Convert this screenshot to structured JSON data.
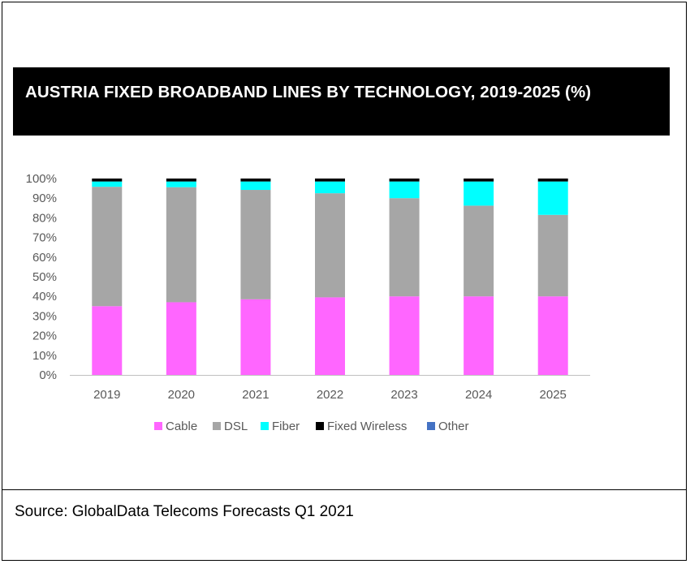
{
  "title": "AUSTRIA FIXED BROADBAND LINES BY TECHNOLOGY, 2019-2025 (%)",
  "source": "Source: GlobalData Telecoms Forecasts Q1 2021",
  "chart_data": {
    "type": "bar",
    "stacked": true,
    "categories": [
      "2019",
      "2020",
      "2021",
      "2022",
      "2023",
      "2024",
      "2025"
    ],
    "ylim": [
      0,
      100
    ],
    "yticks": [
      "0%",
      "10%",
      "20%",
      "30%",
      "40%",
      "50%",
      "60%",
      "70%",
      "80%",
      "90%",
      "100%"
    ],
    "grid": false,
    "legend_position": "bottom",
    "series": [
      {
        "name": "Cable",
        "color": "#ff66ff",
        "values": [
          35,
          37,
          38.5,
          39.5,
          40,
          40,
          40
        ]
      },
      {
        "name": "DSL",
        "color": "#a6a6a6",
        "values": [
          60.8,
          58.6,
          55.7,
          53,
          50,
          46.2,
          41.5
        ]
      },
      {
        "name": "Fiber",
        "color": "#00ffff",
        "values": [
          2.7,
          2.9,
          4.3,
          6,
          8.5,
          12.3,
          17
        ]
      },
      {
        "name": "Fixed Wireless",
        "color": "#000000",
        "values": [
          1.5,
          1.5,
          1.5,
          1.5,
          1.5,
          1.5,
          1.5
        ]
      },
      {
        "name": "Other",
        "color": "#4472c4",
        "values": [
          0,
          0,
          0,
          0,
          0,
          0,
          0
        ]
      }
    ]
  }
}
